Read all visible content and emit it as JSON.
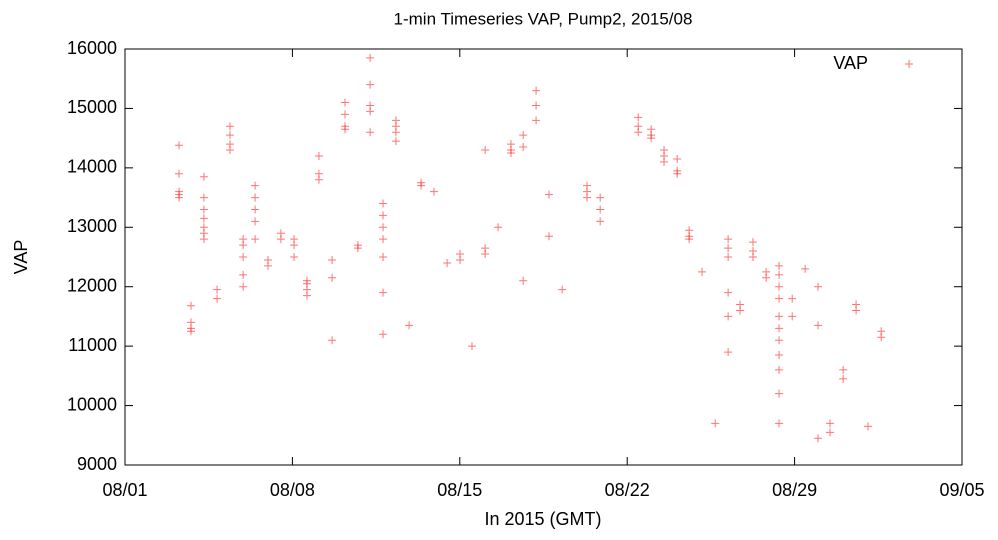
{
  "chart_data": {
    "type": "scatter",
    "title": "1-min Timeseries VAP, Pump2, 2015/08",
    "x_label": "In 2015 (GMT)",
    "y_label": "VAP",
    "xlim": [
      0,
      35
    ],
    "xticks": [
      {
        "value": 0,
        "label": "08/01"
      },
      {
        "value": 7,
        "label": "08/08"
      },
      {
        "value": 14,
        "label": "08/15"
      },
      {
        "value": 21,
        "label": "08/22"
      },
      {
        "value": 28,
        "label": "08/29"
      },
      {
        "value": 35,
        "label": "09/05"
      }
    ],
    "ylim": [
      9000,
      16000
    ],
    "yticks": [
      9000,
      10000,
      11000,
      12000,
      13000,
      14000,
      15000,
      16000
    ],
    "grid": false,
    "legend": "top right",
    "series": [
      {
        "name": "VAP",
        "color": "#ff0000",
        "x": [
          2.26,
          2.26,
          2.26,
          2.26,
          2.26,
          2.76,
          2.76,
          2.76,
          2.76,
          3.3,
          3.3,
          3.3,
          3.3,
          3.3,
          3.3,
          3.3,
          3.85,
          3.85,
          4.39,
          4.39,
          4.39,
          4.39,
          4.94,
          4.94,
          4.94,
          4.94,
          4.94,
          5.44,
          5.44,
          5.44,
          5.44,
          5.44,
          5.98,
          5.98,
          6.52,
          6.52,
          7.07,
          7.07,
          7.07,
          7.61,
          7.61,
          7.61,
          7.61,
          8.11,
          8.11,
          8.11,
          8.66,
          8.66,
          8.66,
          9.2,
          9.2,
          9.2,
          9.2,
          9.74,
          9.74,
          10.25,
          10.25,
          10.25,
          10.25,
          10.25,
          10.79,
          10.79,
          10.79,
          10.79,
          10.79,
          10.79,
          10.79,
          11.33,
          11.33,
          11.33,
          11.33,
          11.88,
          12.38,
          12.38,
          12.92,
          13.47,
          14.01,
          14.01,
          14.51,
          15.06,
          15.06,
          15.06,
          15.6,
          16.14,
          16.14,
          16.14,
          16.65,
          16.65,
          16.65,
          17.19,
          17.19,
          17.19,
          17.73,
          17.73,
          18.28,
          19.32,
          19.32,
          19.32,
          19.87,
          19.87,
          19.87,
          21.46,
          21.46,
          21.46,
          22.0,
          22.0,
          22.0,
          22.54,
          22.54,
          22.54,
          23.09,
          23.09,
          23.09,
          23.59,
          23.59,
          23.59,
          24.13,
          24.68,
          25.22,
          25.22,
          25.22,
          25.22,
          25.22,
          25.22,
          25.72,
          25.72,
          26.26,
          26.26,
          26.26,
          26.81,
          26.81,
          27.35,
          27.35,
          27.35,
          27.35,
          27.35,
          27.35,
          27.35,
          27.35,
          27.35,
          27.35,
          27.35,
          27.9,
          27.9,
          28.44,
          28.98,
          28.98,
          28.98,
          29.48,
          29.48,
          30.03,
          30.03,
          30.57,
          30.57,
          31.07,
          31.62,
          31.62
        ],
        "values": [
          13500,
          13550,
          13600,
          13900,
          14380,
          11250,
          11300,
          11680,
          11400,
          13850,
          13500,
          13300,
          13150,
          13000,
          12900,
          12800,
          11800,
          11950,
          14300,
          14400,
          14550,
          14700,
          12000,
          12200,
          12500,
          12700,
          12800,
          12800,
          13100,
          13300,
          13500,
          13700,
          12350,
          12450,
          12800,
          12900,
          12500,
          12700,
          12800,
          11850,
          11950,
          12050,
          12100,
          13800,
          13900,
          14200,
          11100,
          12150,
          12450,
          14650,
          14700,
          14900,
          15100,
          12650,
          12700,
          14600,
          14950,
          15050,
          15400,
          15850,
          11200,
          11900,
          12500,
          12800,
          13000,
          13200,
          13400,
          14450,
          14600,
          14700,
          14800,
          11350,
          13700,
          13750,
          13600,
          12400,
          12450,
          12550,
          11000,
          14300,
          12550,
          12650,
          13000,
          14250,
          14300,
          14400,
          12100,
          14350,
          14550,
          14800,
          15050,
          15300,
          13550,
          12850,
          11950,
          13500,
          13600,
          13700,
          13100,
          13300,
          13500,
          14600,
          14700,
          14850,
          14500,
          14550,
          14650,
          14100,
          14200,
          14300,
          13900,
          13950,
          14150,
          12800,
          12850,
          12950,
          12250,
          9700,
          10900,
          11500,
          11900,
          12500,
          12650,
          12800,
          11600,
          11700,
          12500,
          12600,
          12750,
          12150,
          12250,
          9700,
          10200,
          10600,
          10850,
          11100,
          11300,
          11500,
          11800,
          12000,
          12200,
          12350,
          11500,
          11800,
          12300,
          9450,
          11350,
          12000,
          9550,
          9700,
          10450,
          10600,
          11600,
          11700,
          9650,
          11150,
          11250
        ]
      }
    ]
  }
}
